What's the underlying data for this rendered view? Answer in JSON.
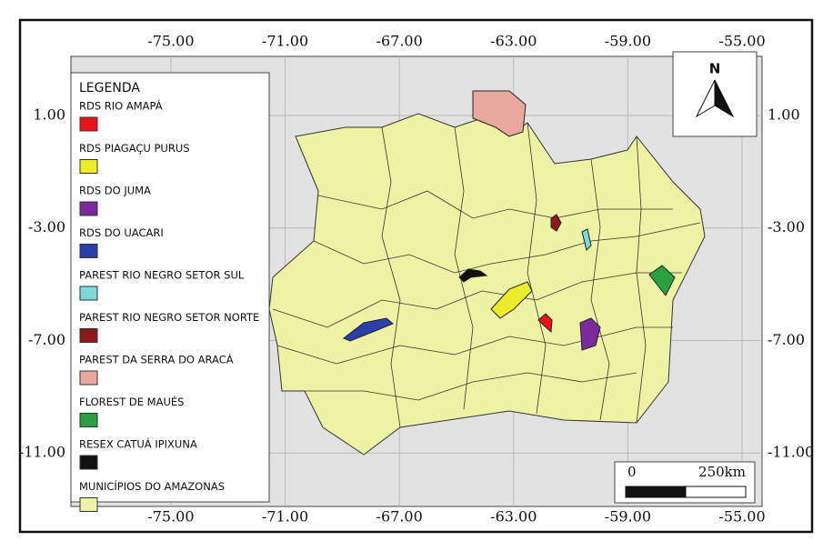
{
  "map": {
    "xticks": [
      {
        "value": -75,
        "label": "-75.00"
      },
      {
        "value": -71,
        "label": "-71.00"
      },
      {
        "value": -67,
        "label": "-67.00"
      },
      {
        "value": -63,
        "label": "-63.00"
      },
      {
        "value": -59,
        "label": "-59.00"
      },
      {
        "value": -55,
        "label": "-55.00"
      }
    ],
    "yticks": [
      {
        "value": 1,
        "label": "1.00"
      },
      {
        "value": -3,
        "label": "-3.00"
      },
      {
        "value": -7,
        "label": "-7.00"
      },
      {
        "value": -11,
        "label": "-11.00"
      }
    ],
    "xlim": [
      -78.5,
      -54.3
    ],
    "ylim": [
      -12.9,
      3.1
    ],
    "legend": {
      "title": "LEGENDA",
      "items": [
        {
          "name": "RDS RIO AMAPÁ",
          "color": "#e8141c"
        },
        {
          "name": "RDS PIAGAÇU PURUS",
          "color": "#ecec2a"
        },
        {
          "name": "RDS DO JUMA",
          "color": "#7a2a9a"
        },
        {
          "name": "RDS DO UACARI",
          "color": "#2a3fa8"
        },
        {
          "name": "PAREST RIO NEGRO SETOR SUL",
          "color": "#7ed8d8"
        },
        {
          "name": "PAREST RIO NEGRO SETOR NORTE",
          "color": "#8b1a1a"
        },
        {
          "name": "PAREST DA SERRA DO ARACÁ",
          "color": "#e8a8a0"
        },
        {
          "name": "FLOREST DE MAUÉS",
          "color": "#2aa040"
        },
        {
          "name": "RESEX CATUÁ IPIXUNA",
          "color": "#111111"
        },
        {
          "name": "MUNICÍPIOS DO AMAZONAS",
          "color": "#eef2a4"
        }
      ]
    },
    "north": "N",
    "scale": {
      "start": "0",
      "end": "250km"
    }
  }
}
